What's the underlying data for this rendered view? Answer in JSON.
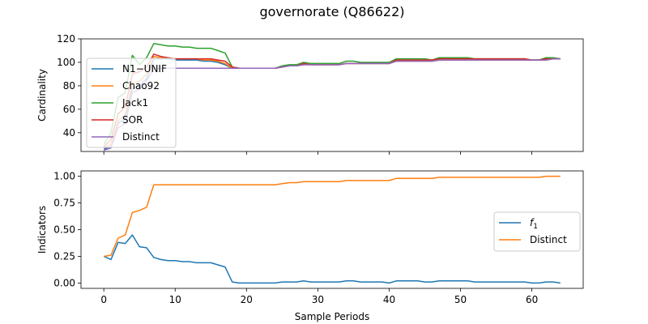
{
  "figure": {
    "title": "governorate (Q86622)"
  },
  "chart_data": [
    {
      "type": "line",
      "title": "",
      "xlabel": "",
      "ylabel": "Cardinality",
      "xlim": [
        -3.2,
        67.2
      ],
      "ylim": [
        24,
        120
      ],
      "xticks": [
        0,
        10,
        20,
        30,
        40,
        50,
        60
      ],
      "yticks": [
        40,
        60,
        80,
        100,
        120
      ],
      "show_xtick_labels": false,
      "grid": false,
      "legend": "upper-left",
      "x": [
        0,
        1,
        2,
        3,
        4,
        5,
        6,
        7,
        8,
        9,
        10,
        11,
        12,
        13,
        14,
        15,
        16,
        17,
        18,
        19,
        20,
        21,
        22,
        23,
        24,
        25,
        26,
        27,
        28,
        29,
        30,
        31,
        32,
        33,
        34,
        35,
        36,
        37,
        38,
        39,
        40,
        41,
        42,
        43,
        44,
        45,
        46,
        47,
        48,
        49,
        50,
        51,
        52,
        53,
        54,
        55,
        56,
        57,
        58,
        59,
        60,
        61,
        62,
        63,
        64
      ],
      "series": [
        {
          "name": "N1−UNIF",
          "color": "#1f77b4",
          "values": [
            26,
            28,
            48,
            52,
            78,
            80,
            86,
            103,
            103,
            103,
            102,
            102,
            102,
            102,
            101,
            101,
            100,
            98,
            95,
            95,
            95,
            95,
            95,
            95,
            95,
            96,
            97,
            97,
            98,
            98,
            98,
            98,
            98,
            98,
            99,
            99,
            99,
            99,
            99,
            99,
            99,
            101,
            101,
            101,
            101,
            101,
            101,
            102,
            102,
            102,
            102,
            102,
            102,
            102,
            102,
            102,
            102,
            102,
            102,
            102,
            102,
            102,
            102,
            103,
            103
          ]
        },
        {
          "name": "Chao92",
          "color": "#ff7f0e",
          "values": [
            27,
            30,
            50,
            56,
            82,
            84,
            90,
            105,
            104,
            104,
            103,
            103,
            103,
            103,
            102,
            102,
            101,
            99,
            95,
            95,
            95,
            95,
            95,
            95,
            95,
            96,
            97,
            97,
            98,
            98,
            98,
            98,
            98,
            98,
            99,
            99,
            99,
            99,
            99,
            99,
            99,
            101,
            101,
            101,
            101,
            101,
            101,
            102,
            102,
            102,
            102,
            102,
            102,
            102,
            102,
            102,
            102,
            102,
            102,
            102,
            102,
            102,
            102,
            103,
            103
          ]
        },
        {
          "name": "Jack1",
          "color": "#2ca02c",
          "values": [
            30,
            40,
            70,
            74,
            106,
            98,
            104,
            116,
            115,
            114,
            114,
            113,
            113,
            112,
            112,
            112,
            110,
            108,
            96,
            95,
            95,
            95,
            95,
            95,
            95,
            97,
            98,
            98,
            100,
            99,
            99,
            99,
            99,
            99,
            101,
            101,
            100,
            100,
            100,
            100,
            100,
            103,
            103,
            103,
            103,
            103,
            102,
            104,
            104,
            104,
            104,
            104,
            103,
            103,
            103,
            103,
            103,
            103,
            103,
            103,
            102,
            102,
            104,
            104,
            103
          ]
        },
        {
          "name": "SOR",
          "color": "#d62728",
          "values": [
            28,
            34,
            56,
            62,
            90,
            92,
            96,
            107,
            105,
            104,
            103,
            103,
            103,
            103,
            103,
            103,
            102,
            101,
            96,
            95,
            95,
            95,
            95,
            95,
            95,
            96,
            97,
            97,
            99,
            98,
            98,
            98,
            98,
            98,
            99,
            99,
            99,
            99,
            99,
            99,
            99,
            102,
            102,
            102,
            102,
            102,
            102,
            103,
            103,
            103,
            103,
            103,
            103,
            103,
            103,
            103,
            103,
            103,
            103,
            103,
            102,
            102,
            103,
            103,
            103
          ]
        },
        {
          "name": "Distinct",
          "color": "#9467bd",
          "values": [
            25,
            27,
            44,
            48,
            74,
            77,
            84,
            95,
            95,
            95,
            95,
            95,
            95,
            95,
            95,
            95,
            95,
            95,
            95,
            95,
            95,
            95,
            95,
            95,
            95,
            96,
            97,
            97,
            98,
            98,
            98,
            98,
            98,
            98,
            99,
            99,
            99,
            99,
            99,
            99,
            99,
            101,
            101,
            101,
            101,
            101,
            101,
            102,
            102,
            102,
            102,
            102,
            102,
            102,
            102,
            102,
            102,
            102,
            102,
            102,
            102,
            102,
            102,
            103,
            103
          ]
        }
      ]
    },
    {
      "type": "line",
      "title": "",
      "xlabel": "Sample Periods",
      "ylabel": "Indicators",
      "xlim": [
        -3.2,
        67.2
      ],
      "ylim": [
        -0.05,
        1.05
      ],
      "xticks": [
        0,
        10,
        20,
        30,
        40,
        50,
        60
      ],
      "yticks": [
        0.0,
        0.25,
        0.5,
        0.75,
        1.0
      ],
      "ytick_labels": [
        "0.00",
        "0.25",
        "0.50",
        "0.75",
        "1.00"
      ],
      "grid": false,
      "legend": "center-right",
      "x": [
        0,
        1,
        2,
        3,
        4,
        5,
        6,
        7,
        8,
        9,
        10,
        11,
        12,
        13,
        14,
        15,
        16,
        17,
        18,
        19,
        20,
        21,
        22,
        23,
        24,
        25,
        26,
        27,
        28,
        29,
        30,
        31,
        32,
        33,
        34,
        35,
        36,
        37,
        38,
        39,
        40,
        41,
        42,
        43,
        44,
        45,
        46,
        47,
        48,
        49,
        50,
        51,
        52,
        53,
        54,
        55,
        56,
        57,
        58,
        59,
        60,
        61,
        62,
        63,
        64
      ],
      "series": [
        {
          "name": "f",
          "name_sub": "1",
          "color": "#1f77b4",
          "values": [
            0.25,
            0.22,
            0.38,
            0.37,
            0.45,
            0.34,
            0.33,
            0.24,
            0.22,
            0.21,
            0.21,
            0.2,
            0.2,
            0.19,
            0.19,
            0.19,
            0.17,
            0.15,
            0.01,
            0.0,
            0.0,
            0.0,
            0.0,
            0.0,
            0.0,
            0.01,
            0.01,
            0.01,
            0.02,
            0.01,
            0.01,
            0.01,
            0.01,
            0.01,
            0.02,
            0.02,
            0.01,
            0.01,
            0.01,
            0.01,
            0.0,
            0.02,
            0.02,
            0.02,
            0.02,
            0.01,
            0.01,
            0.02,
            0.02,
            0.02,
            0.02,
            0.02,
            0.01,
            0.01,
            0.01,
            0.01,
            0.01,
            0.01,
            0.01,
            0.01,
            0.0,
            0.0,
            0.01,
            0.01,
            0.0
          ]
        },
        {
          "name": "Distinct",
          "color": "#ff7f0e",
          "values": [
            0.25,
            0.26,
            0.42,
            0.45,
            0.66,
            0.68,
            0.71,
            0.92,
            0.92,
            0.92,
            0.92,
            0.92,
            0.92,
            0.92,
            0.92,
            0.92,
            0.92,
            0.92,
            0.92,
            0.92,
            0.92,
            0.92,
            0.92,
            0.92,
            0.92,
            0.93,
            0.94,
            0.94,
            0.95,
            0.95,
            0.95,
            0.95,
            0.95,
            0.95,
            0.96,
            0.96,
            0.96,
            0.96,
            0.96,
            0.96,
            0.96,
            0.98,
            0.98,
            0.98,
            0.98,
            0.98,
            0.98,
            0.99,
            0.99,
            0.99,
            0.99,
            0.99,
            0.99,
            0.99,
            0.99,
            0.99,
            0.99,
            0.99,
            0.99,
            0.99,
            0.99,
            0.99,
            1.0,
            1.0,
            1.0
          ]
        }
      ]
    }
  ]
}
